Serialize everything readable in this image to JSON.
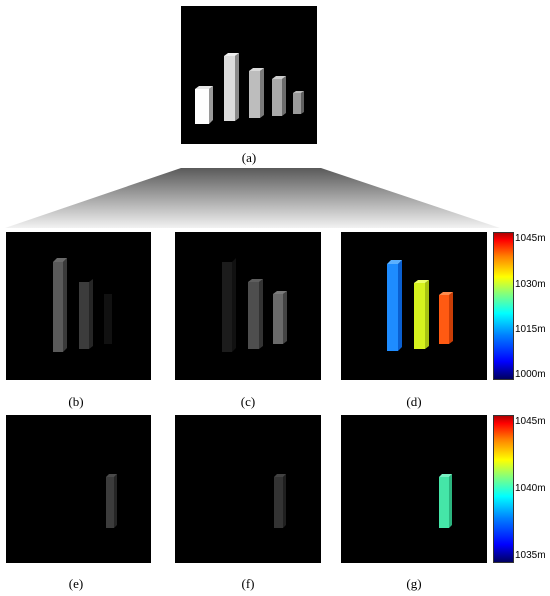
{
  "captions": {
    "a": "(a)",
    "b": "(b)",
    "c": "(c)",
    "d": "(d)",
    "e": "(e)",
    "f": "(f)",
    "g": "(g)"
  },
  "colorbar_top": {
    "ticks": [
      "1045m",
      "1030m",
      "1015m",
      "1000m"
    ],
    "colormap": "jet"
  },
  "colorbar_bottom": {
    "ticks": [
      "1045m",
      "1040m",
      "1035m"
    ],
    "colormap": "jet"
  },
  "colors": {
    "panel_background": "#000000",
    "bar_blue": "#1e8cff",
    "bar_yellow_green": "#d6f21e",
    "bar_orange": "#ff5a12",
    "bar_cyan_green": "#45e6a8"
  }
}
